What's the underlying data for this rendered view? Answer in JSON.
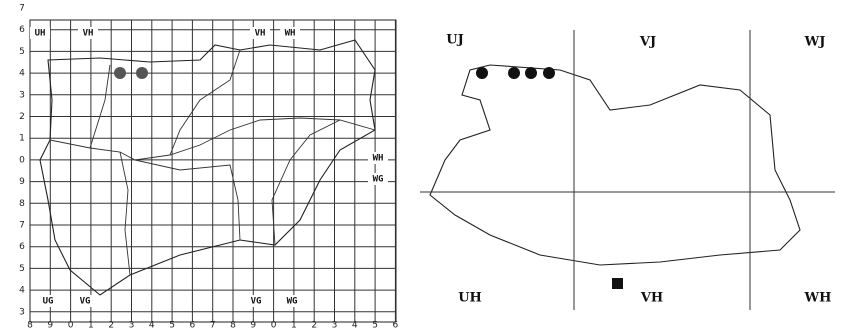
{
  "left_map": {
    "y_axis": [
      "7",
      "6",
      "5",
      "4",
      "3",
      "2",
      "1",
      "0",
      "9",
      "8",
      "7",
      "6",
      "5",
      "4",
      "3"
    ],
    "x_axis": [
      "8",
      "9",
      "0",
      "1",
      "2",
      "3",
      "4",
      "5",
      "6",
      "7",
      "8",
      "9",
      "0",
      "1",
      "2",
      "3",
      "4",
      "5",
      "6"
    ],
    "zones": [
      "UH",
      "VH",
      "VH",
      "WH",
      "WH",
      "WG",
      "UG",
      "VG",
      "VG",
      "WG"
    ]
  },
  "right_map": {
    "zones": [
      "UJ",
      "VJ",
      "WJ",
      "UH",
      "VH",
      "WH"
    ]
  }
}
